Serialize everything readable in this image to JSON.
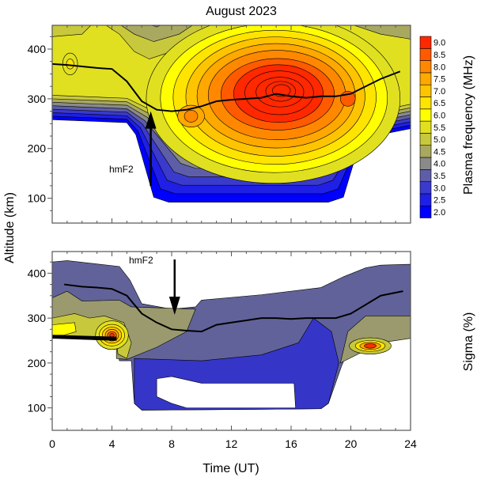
{
  "chart_data": [
    {
      "type": "heatmap",
      "subtype": "filled-contour",
      "title": "August 2023",
      "xlabel": "Time (UT)",
      "ylabel": "Altitude (km)",
      "xlim": [
        0,
        24
      ],
      "ylim": [
        50,
        450
      ],
      "xticks": [
        "0",
        "4",
        "8",
        "12",
        "16",
        "20",
        "24"
      ],
      "yticks": [
        "100",
        "200",
        "300",
        "400"
      ],
      "colorbar": {
        "label": "Plasma frequency (MHz)",
        "levels": [
          "2.0",
          "2.5",
          "3.0",
          "3.5",
          "4.0",
          "4.5",
          "5.0",
          "5.5",
          "6.0",
          "6.5",
          "7.0",
          "7.5",
          "8.0",
          "8.5",
          "9.0"
        ],
        "colors": [
          "#0000ff",
          "#1f1fe6",
          "#3a3acc",
          "#5e5ea8",
          "#8a8a88",
          "#a8a860",
          "#c8c83c",
          "#e0e020",
          "#ffff00",
          "#ffe400",
          "#ffc400",
          "#ffa800",
          "#ff8800",
          "#ff5a00",
          "#ff2800"
        ]
      },
      "annotation": "hmF2",
      "hmF2": {
        "t": [
          0,
          1,
          2,
          3,
          4,
          5,
          6,
          7,
          8,
          9,
          10,
          11,
          12,
          13,
          14,
          15,
          16,
          17,
          18,
          19,
          20,
          21,
          22,
          23.3
        ],
        "alt": [
          370,
          368,
          365,
          362,
          360,
          335,
          295,
          278,
          275,
          278,
          285,
          295,
          298,
          300,
          302,
          310,
          305,
          302,
          305,
          305,
          310,
          325,
          340,
          355
        ]
      },
      "peak_regions": [
        {
          "t": 15.5,
          "alt": 310,
          "max_MHz": 9.0
        },
        {
          "t": 9.3,
          "alt": 265,
          "max_MHz": 7.5
        },
        {
          "t": 1.2,
          "alt": 370,
          "max_MHz": 5.5
        }
      ]
    },
    {
      "type": "heatmap",
      "subtype": "filled-contour",
      "xlabel": "Time (UT)",
      "ylabel": "Altitude (km)",
      "xlim": [
        0,
        24
      ],
      "ylim": [
        50,
        450
      ],
      "xticks": [
        "0",
        "4",
        "8",
        "12",
        "16",
        "20",
        "24"
      ],
      "yticks": [
        "100",
        "200",
        "300",
        "400"
      ],
      "colorbar": {
        "label": "Sigma (%)"
      },
      "annotation": "hmF2",
      "hmF2": {
        "t": [
          0.8,
          2,
          3,
          4,
          5,
          6,
          7,
          8,
          9,
          10,
          11,
          12,
          13,
          14,
          15,
          16,
          17,
          18,
          19,
          20,
          21,
          22,
          23.5
        ],
        "alt": [
          375,
          370,
          368,
          365,
          350,
          310,
          290,
          275,
          272,
          270,
          285,
          290,
          295,
          300,
          300,
          298,
          300,
          300,
          300,
          310,
          330,
          350,
          360
        ]
      },
      "peak_regions": [
        {
          "t": 4.0,
          "alt": 262
        },
        {
          "t": 21.0,
          "alt": 235
        }
      ]
    }
  ]
}
